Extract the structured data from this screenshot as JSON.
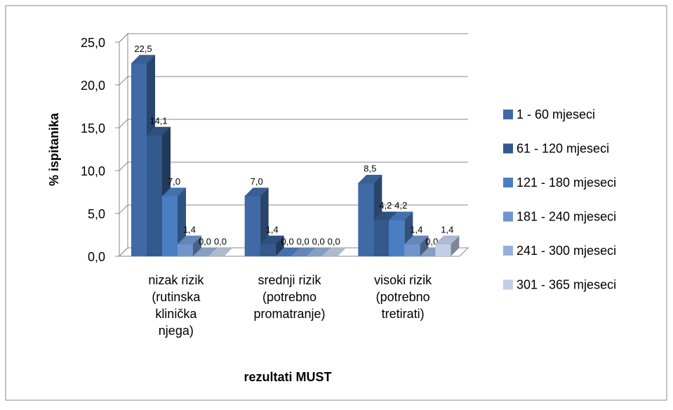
{
  "chart_data": {
    "type": "bar3d",
    "categories": [
      [
        "nizak rizik",
        "(rutinska",
        "klinička",
        "njega)"
      ],
      [
        "srednji rizik",
        "(potrebno",
        "promatranje)"
      ],
      [
        "visoki rizik",
        "(potrebno",
        "tretirati)"
      ]
    ],
    "series": [
      {
        "name": "1 - 60 mjeseci",
        "color": "#3f6aa6",
        "values": [
          22.5,
          7.0,
          8.5
        ],
        "value_labels": [
          "22,5",
          "7,0",
          "8,5"
        ]
      },
      {
        "name": "61 - 120 mjeseci",
        "color": "#34598c",
        "values": [
          14.1,
          1.4,
          4.2
        ],
        "value_labels": [
          "14,1",
          "1,4",
          "4,2"
        ]
      },
      {
        "name": "121 - 180 mjeseci",
        "color": "#4a7ec2",
        "values": [
          7.0,
          0.0,
          4.2
        ],
        "value_labels": [
          "7,0",
          "0,0",
          "4,2"
        ]
      },
      {
        "name": "181 - 240 mjeseci",
        "color": "#6f95cc",
        "values": [
          1.4,
          0.0,
          1.4
        ],
        "value_labels": [
          "1,4",
          "0,0",
          "1,4"
        ]
      },
      {
        "name": "241 - 300 mjeseci",
        "color": "#94b0d8",
        "values": [
          0.0,
          0.0,
          0.0
        ],
        "value_labels": [
          "0,0",
          "0,0",
          "0,0"
        ]
      },
      {
        "name": "301 - 365 mjeseci",
        "color": "#c0cfe6",
        "values": [
          0.0,
          0.0,
          1.4
        ],
        "value_labels": [
          "0,0",
          "0,0",
          "1,4"
        ]
      }
    ],
    "y_label": "% ispitanika",
    "x_label": "rezultati MUST",
    "ylim": [
      0,
      25
    ],
    "yticks": [
      {
        "value": 0,
        "label": "0,0"
      },
      {
        "value": 5,
        "label": "5,0"
      },
      {
        "value": 10,
        "label": "10,0"
      },
      {
        "value": 15,
        "label": "15,0"
      },
      {
        "value": 20,
        "label": "20,0"
      },
      {
        "value": 25,
        "label": "25,0"
      }
    ],
    "grid": true,
    "legend": "right"
  }
}
